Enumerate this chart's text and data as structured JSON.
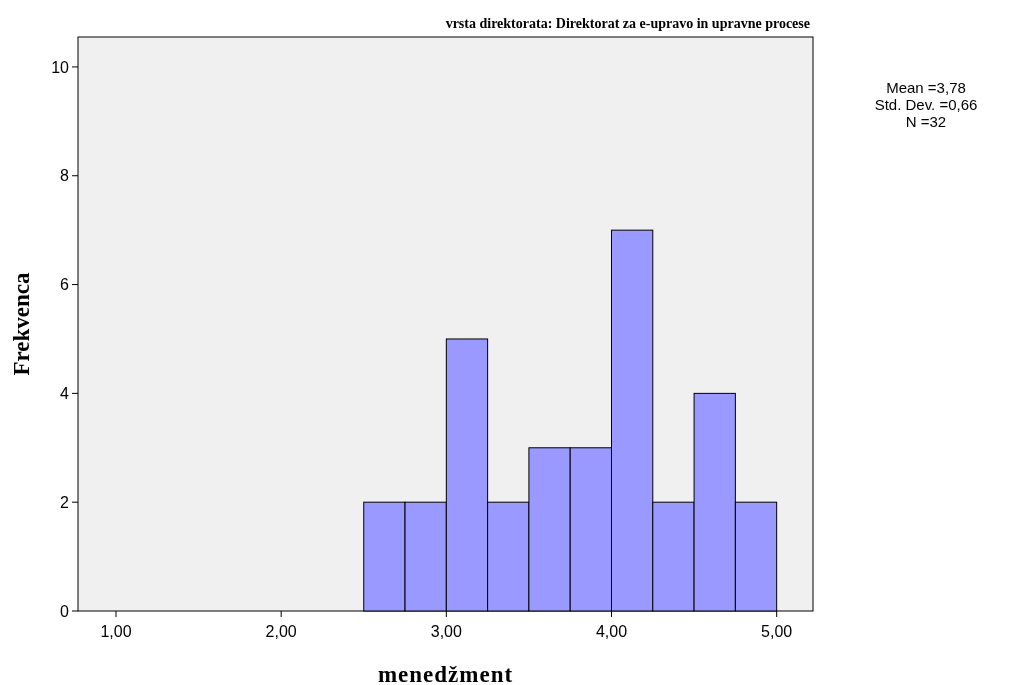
{
  "chart_data": {
    "type": "histogram",
    "title": "vrsta direktorata: Direktorat za e-upravo in upravne procese",
    "xlabel": "menedžment",
    "ylabel": "Frekvenca",
    "bins": [
      2.5,
      2.75,
      3.0,
      3.25,
      3.5,
      3.75,
      4.0,
      4.25,
      4.5,
      4.75,
      5.0
    ],
    "values": [
      2,
      2,
      5,
      2,
      3,
      3,
      7,
      2,
      4,
      2
    ],
    "color": "#9999ff",
    "xlim": [
      0.77,
      5.22
    ],
    "xticks": [
      {
        "value": 1,
        "label": "1,00"
      },
      {
        "value": 2,
        "label": "2,00"
      },
      {
        "value": 3,
        "label": "3,00"
      },
      {
        "value": 4,
        "label": "4,00"
      },
      {
        "value": 5,
        "label": "5,00"
      }
    ],
    "ylim": [
      0,
      10.55
    ],
    "yticks": [
      0,
      2,
      4,
      6,
      8,
      10
    ],
    "grid": false,
    "annotations": [
      "Mean =3,78",
      "Std. Dev. =0,66",
      "N =32"
    ]
  }
}
